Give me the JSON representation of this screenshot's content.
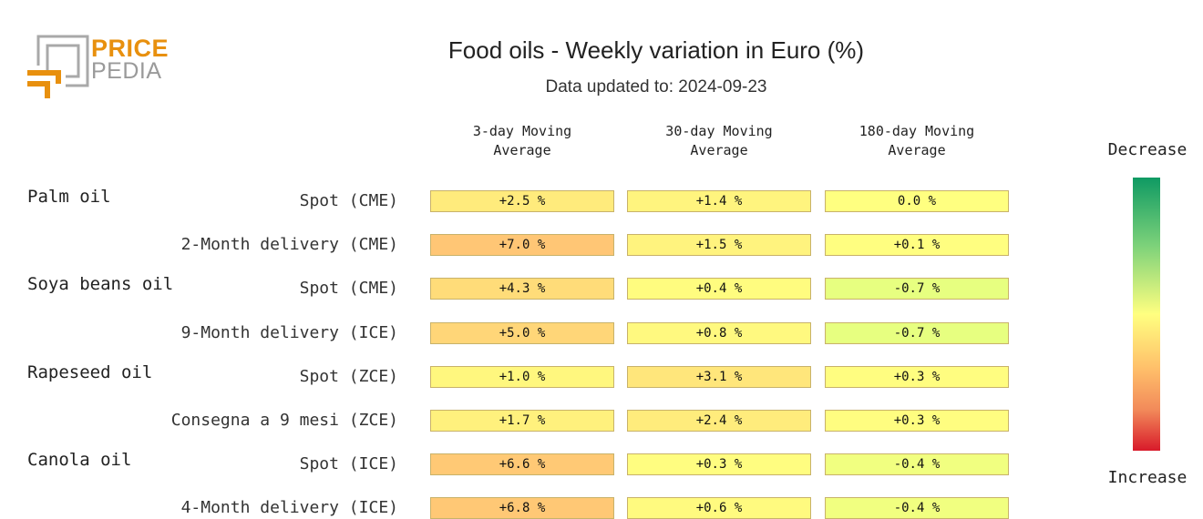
{
  "logo": {
    "line1": "PRICE",
    "line2": "PEDIA"
  },
  "title": "Food oils - Weekly variation in Euro (%)",
  "subtitle": "Data updated to: 2024-09-23",
  "columns": [
    {
      "line1": "3-day Moving",
      "line2": "Average"
    },
    {
      "line1": "30-day Moving",
      "line2": "Average"
    },
    {
      "line1": "180-day Moving",
      "line2": "Average"
    }
  ],
  "legend": {
    "top": "Decrease",
    "bottom": "Increase"
  },
  "chart_data": {
    "type": "table",
    "title": "Food oils - Weekly variation in Euro (%)",
    "subtitle": "Data updated to: 2024-09-23",
    "columns": [
      "3-day Moving Average",
      "30-day Moving Average",
      "180-day Moving Average"
    ],
    "groups": [
      {
        "name": "Palm oil",
        "rows": [
          {
            "label": "Spot (CME)",
            "values": [
              2.5,
              1.4,
              0.0
            ],
            "texts": [
              "+2.5 %",
              "+1.4 %",
              "0.0 %"
            ]
          },
          {
            "label": "2-Month delivery (CME)",
            "values": [
              7.0,
              1.5,
              0.1
            ],
            "texts": [
              "+7.0 %",
              "+1.5 %",
              "+0.1 %"
            ]
          }
        ]
      },
      {
        "name": "Soya beans oil",
        "rows": [
          {
            "label": "Spot (CME)",
            "values": [
              4.3,
              0.4,
              -0.7
            ],
            "texts": [
              "+4.3 %",
              "+0.4 %",
              "-0.7 %"
            ]
          },
          {
            "label": "9-Month delivery (ICE)",
            "values": [
              5.0,
              0.8,
              -0.7
            ],
            "texts": [
              "+5.0 %",
              "+0.8 %",
              "-0.7 %"
            ]
          }
        ]
      },
      {
        "name": "Rapeseed oil",
        "rows": [
          {
            "label": "Spot (ZCE)",
            "values": [
              1.0,
              3.1,
              0.3
            ],
            "texts": [
              "+1.0 %",
              "+3.1 %",
              "+0.3 %"
            ]
          },
          {
            "label": "Consegna a 9 mesi (ZCE)",
            "values": [
              1.7,
              2.4,
              0.3
            ],
            "texts": [
              "+1.7 %",
              "+2.4 %",
              "+0.3 %"
            ]
          }
        ]
      },
      {
        "name": "Canola oil",
        "rows": [
          {
            "label": "Spot (ICE)",
            "values": [
              6.6,
              0.3,
              -0.4
            ],
            "texts": [
              "+6.6 %",
              "+0.3 %",
              "-0.4 %"
            ]
          },
          {
            "label": "4-Month delivery (ICE)",
            "values": [
              6.8,
              0.6,
              -0.4
            ],
            "texts": [
              "+6.8 %",
              "+0.6 %",
              "-0.4 %"
            ]
          }
        ]
      }
    ],
    "color_scale": {
      "min_label": "Decrease",
      "max_label": "Increase"
    }
  }
}
